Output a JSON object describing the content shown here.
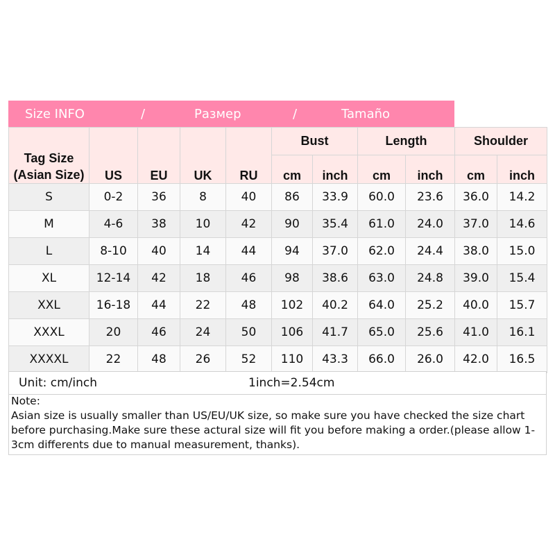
{
  "title": {
    "en": "Size INFO",
    "sep1": "/",
    "ru": "Размер",
    "sep2": "/",
    "es": "Tamaño"
  },
  "colors": {
    "title_bar": "#ff86ad",
    "header_bg": "#ffe9e8",
    "row_light": "#fafafa",
    "row_dark": "#efefef"
  },
  "headers": {
    "tag_line1": "Tag Size",
    "tag_line2": "(Asian Size)",
    "us": "US",
    "eu": "EU",
    "uk": "UK",
    "ru": "RU",
    "bust": "Bust",
    "length": "Length",
    "shoulder": "Shoulder",
    "cm": "cm",
    "inch": "inch"
  },
  "rows": [
    [
      "S",
      "0-2",
      "36",
      "8",
      "40",
      "86",
      "33.9",
      "60.0",
      "23.6",
      "36.0",
      "14.2"
    ],
    [
      "M",
      "4-6",
      "38",
      "10",
      "42",
      "90",
      "35.4",
      "61.0",
      "24.0",
      "37.0",
      "14.6"
    ],
    [
      "L",
      "8-10",
      "40",
      "14",
      "44",
      "94",
      "37.0",
      "62.0",
      "24.4",
      "38.0",
      "15.0"
    ],
    [
      "XL",
      "12-14",
      "42",
      "18",
      "46",
      "98",
      "38.6",
      "63.0",
      "24.8",
      "39.0",
      "15.4"
    ],
    [
      "XXL",
      "16-18",
      "44",
      "22",
      "48",
      "102",
      "40.2",
      "64.0",
      "25.2",
      "40.0",
      "15.7"
    ],
    [
      "XXXL",
      "20",
      "46",
      "24",
      "50",
      "106",
      "41.7",
      "65.0",
      "25.6",
      "41.0",
      "16.1"
    ],
    [
      "XXXXL",
      "22",
      "48",
      "26",
      "52",
      "110",
      "43.3",
      "66.0",
      "26.0",
      "42.0",
      "16.5"
    ]
  ],
  "unit": {
    "label": "Unit: cm/inch",
    "conversion": "1inch=2.54cm"
  },
  "note": {
    "heading": "Note:",
    "body": "Asian size is usually smaller than US/EU/UK size, so make sure you have checked the size chart before purchasing.Make sure these actural size will fit you before making a order.(please allow 1-3cm differents due to manual measurement, thanks)."
  }
}
